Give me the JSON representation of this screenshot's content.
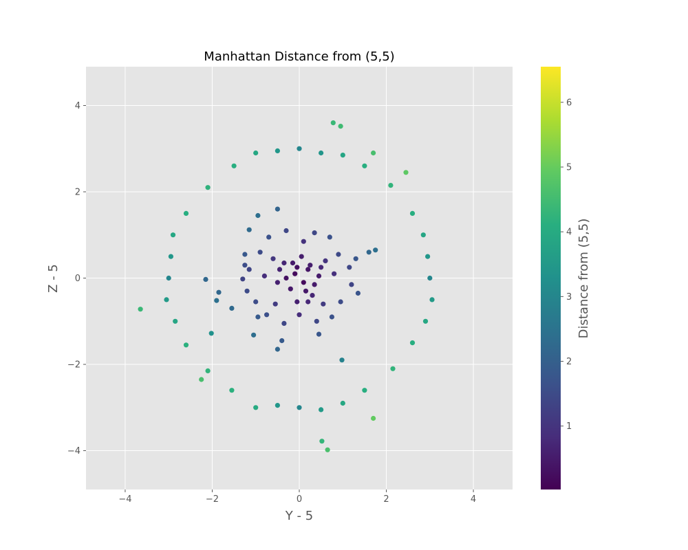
{
  "chart_data": {
    "type": "scatter",
    "title": "Manhattan Distance from (5,5)",
    "xlabel": "Y - 5",
    "ylabel": "Z - 5",
    "xlim": [
      -4.9,
      4.9
    ],
    "ylim": [
      -4.9,
      4.9
    ],
    "xticks": [
      -4,
      -2,
      0,
      2,
      4
    ],
    "yticks": [
      -4,
      -2,
      0,
      2,
      4
    ],
    "x_tick_labels": [
      "−4",
      "−2",
      "0",
      "2",
      "4"
    ],
    "y_tick_labels": [
      "−4",
      "−2",
      "0",
      "2",
      "4"
    ],
    "grid": true,
    "style": "ggplot",
    "colormap": "viridis",
    "colorbar": {
      "label": "Distance from (5,5)",
      "range": [
        0.02,
        6.55
      ],
      "ticks": [
        1,
        2,
        3,
        4,
        5,
        6
      ],
      "tick_labels": [
        "1",
        "2",
        "3",
        "4",
        "5",
        "6"
      ]
    },
    "note_color_encoding": "marker color = |Y-5| + |Z-5|",
    "points": [
      [
        -3.65,
        -0.72
      ],
      [
        -2.15,
        -0.03
      ],
      [
        -1.85,
        -0.33
      ],
      [
        -1.9,
        -0.52
      ],
      [
        -2.02,
        -1.28
      ],
      [
        -1.55,
        -0.7
      ],
      [
        -0.95,
        -0.9
      ],
      [
        -1.05,
        -1.32
      ],
      [
        -0.5,
        -1.65
      ],
      [
        -0.4,
        -1.45
      ],
      [
        0.78,
        3.6
      ],
      [
        0.95,
        3.52
      ],
      [
        0.65,
        -3.98
      ],
      [
        0.52,
        -3.78
      ],
      [
        1.7,
        -3.25
      ],
      [
        0.98,
        -1.9
      ],
      [
        0.45,
        -1.3
      ],
      [
        1.75,
        0.65
      ],
      [
        1.6,
        0.6
      ],
      [
        -0.5,
        1.6
      ],
      [
        -0.95,
        1.45
      ],
      [
        -1.15,
        1.12
      ],
      [
        -1.3,
        -0.02
      ],
      [
        -1.25,
        0.3
      ],
      [
        1.35,
        -0.35
      ],
      [
        -0.1,
        0.1
      ],
      [
        0.1,
        -0.1
      ],
      [
        0.2,
        0.2
      ],
      [
        -0.2,
        -0.25
      ],
      [
        0.3,
        -0.4
      ],
      [
        -0.35,
        0.35
      ],
      [
        0.45,
        0.05
      ],
      [
        -0.5,
        -0.1
      ],
      [
        0.05,
        0.5
      ],
      [
        -0.05,
        -0.55
      ],
      [
        0.6,
        0.4
      ],
      [
        -0.6,
        0.45
      ],
      [
        0.55,
        -0.6
      ],
      [
        -0.55,
        -0.6
      ],
      [
        0.8,
        0.1
      ],
      [
        -0.8,
        0.05
      ],
      [
        0.1,
        0.85
      ],
      [
        0.0,
        -0.85
      ],
      [
        0.9,
        0.55
      ],
      [
        -0.9,
        0.6
      ],
      [
        0.95,
        -0.55
      ],
      [
        -1.0,
        -0.55
      ],
      [
        0.35,
        1.05
      ],
      [
        -0.3,
        1.1
      ],
      [
        0.4,
        -1.0
      ],
      [
        -0.35,
        -1.05
      ],
      [
        1.15,
        0.25
      ],
      [
        -1.15,
        0.2
      ],
      [
        1.2,
        -0.15
      ],
      [
        -1.2,
        -0.3
      ],
      [
        0.7,
        0.95
      ],
      [
        -0.7,
        0.95
      ],
      [
        0.75,
        -0.9
      ],
      [
        -0.75,
        -0.85
      ],
      [
        1.3,
        0.45
      ],
      [
        -1.25,
        0.55
      ],
      [
        0.25,
        0.3
      ],
      [
        -0.15,
        0.35
      ],
      [
        0.15,
        -0.3
      ],
      [
        -0.3,
        0.0
      ],
      [
        0.35,
        -0.15
      ],
      [
        -0.45,
        0.2
      ],
      [
        0.5,
        0.25
      ],
      [
        -0.05,
        0.25
      ],
      [
        0.2,
        -0.55
      ],
      [
        0.0,
        3.0
      ],
      [
        0.5,
        2.9
      ],
      [
        -0.5,
        2.95
      ],
      [
        1.0,
        2.85
      ],
      [
        -1.0,
        2.9
      ],
      [
        0.0,
        -3.0
      ],
      [
        0.5,
        -3.05
      ],
      [
        -0.5,
        -2.95
      ],
      [
        1.0,
        -2.9
      ],
      [
        -1.0,
        -3.0
      ],
      [
        3.0,
        0.0
      ],
      [
        2.95,
        0.5
      ],
      [
        3.05,
        -0.5
      ],
      [
        2.85,
        1.0
      ],
      [
        2.9,
        -1.0
      ],
      [
        -3.0,
        0.0
      ],
      [
        -2.95,
        0.5
      ],
      [
        -3.05,
        -0.5
      ],
      [
        -2.9,
        1.0
      ],
      [
        -2.85,
        -1.0
      ],
      [
        2.1,
        2.15
      ],
      [
        -2.1,
        2.1
      ],
      [
        2.15,
        -2.1
      ],
      [
        -2.1,
        -2.15
      ],
      [
        1.5,
        2.6
      ],
      [
        -1.5,
        2.6
      ],
      [
        1.5,
        -2.6
      ],
      [
        -1.55,
        -2.6
      ],
      [
        2.6,
        1.5
      ],
      [
        -2.6,
        1.5
      ],
      [
        2.6,
        -1.5
      ],
      [
        -2.6,
        -1.55
      ],
      [
        1.7,
        2.9
      ],
      [
        -2.25,
        -2.35
      ],
      [
        2.45,
        2.45
      ]
    ]
  }
}
